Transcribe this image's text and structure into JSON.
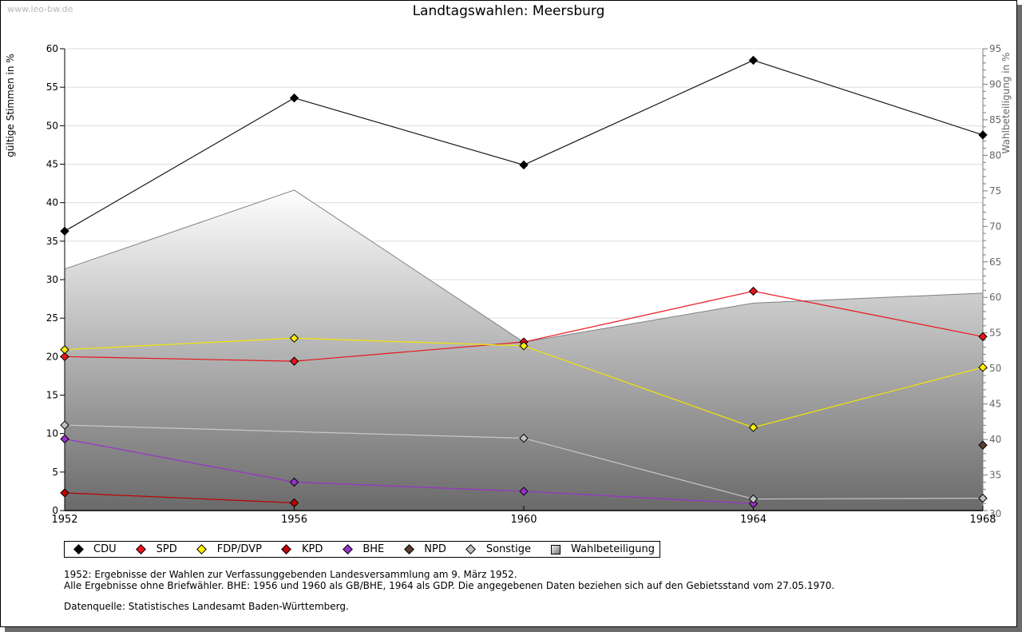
{
  "watermark": "www.leo-bw.de",
  "chart_data": {
    "type": "line",
    "title": "Landtagswahlen: Meersburg",
    "xlabel": "",
    "ylabel": "gültige Stimmen in %",
    "y2label": "Wahlbeteiligung in %",
    "x": [
      1952,
      1956,
      1960,
      1964,
      1968
    ],
    "x_tick_labels": [
      "1952",
      "1956",
      "1960",
      "1964",
      "1968"
    ],
    "ylim": [
      0,
      60
    ],
    "y_ticks": [
      0,
      5,
      10,
      15,
      20,
      25,
      30,
      35,
      40,
      45,
      50,
      55,
      60
    ],
    "y2lim": [
      30,
      95
    ],
    "y2_ticks": [
      30,
      35,
      40,
      45,
      50,
      55,
      60,
      65,
      70,
      75,
      80,
      85,
      90,
      95
    ],
    "grid": true,
    "legend_position": "bottom-left",
    "series": [
      {
        "name": "CDU",
        "color": "#000000",
        "line": "#1a1a1a",
        "values": [
          36.3,
          53.6,
          44.9,
          58.5,
          48.8
        ]
      },
      {
        "name": "SPD",
        "color": "#e8141c",
        "line": "#e8141c",
        "values": [
          20.0,
          19.4,
          21.9,
          28.5,
          22.6
        ]
      },
      {
        "name": "FDP/DVP",
        "color": "#ffee00",
        "line": "#f2e600",
        "values": [
          20.9,
          22.4,
          21.4,
          10.8,
          18.6
        ]
      },
      {
        "name": "KPD",
        "color": "#c00000",
        "line": "#c00000",
        "values": [
          2.3,
          1.0,
          null,
          null,
          null
        ]
      },
      {
        "name": "BHE",
        "color": "#9932cc",
        "line": "#9932cc",
        "values": [
          9.3,
          3.7,
          2.5,
          0.9,
          null
        ]
      },
      {
        "name": "NPD",
        "color": "#5c3d2e",
        "line": "#5c3d2e",
        "values": [
          null,
          null,
          null,
          null,
          8.5
        ]
      },
      {
        "name": "Sonstige",
        "color": "#c0c0c0",
        "line": "#c8c8c8",
        "values": [
          11.1,
          null,
          9.4,
          1.5,
          1.6
        ]
      }
    ],
    "area_series": {
      "name": "Wahlbeteiligung",
      "axis": "y2",
      "values": [
        64.0,
        75.1,
        53.7,
        59.2,
        60.6
      ]
    }
  },
  "notes": {
    "line1": "1952: Ergebnisse der Wahlen zur Verfassunggebenden Landesversammlung am 9. März 1952.",
    "line2": "Alle Ergebnisse ohne Briefwähler. BHE: 1956 und 1960 als GB/BHE, 1964 als GDP. Die angegebenen Daten beziehen sich auf den Gebietsstand vom 27.05.1970.",
    "source": "Datenquelle: Statistisches Landesamt Baden-Württemberg."
  }
}
